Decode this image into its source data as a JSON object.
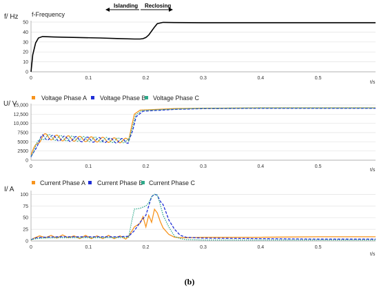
{
  "caption": "(b)",
  "chart_data": [
    {
      "type": "line",
      "ylabel": "f/ Hz",
      "xlabel": "t/s",
      "xlim": [
        0,
        0.6
      ],
      "ylim": [
        0,
        50
      ],
      "x_ticks": [
        "0",
        "0.1",
        "0.2",
        "0.3",
        "0.4",
        "0.5"
      ],
      "y_ticks": [
        "0",
        "10",
        "20",
        "30",
        "40",
        "50"
      ],
      "grid": "horizontal",
      "annotations": [
        {
          "text": "Islanding",
          "direction": "left",
          "from_x": 0.185,
          "to_x": 0.12
        },
        {
          "text": "Reclosing",
          "direction": "right",
          "from_x": 0.19,
          "to_x": 0.235
        }
      ],
      "series": [
        {
          "name": "f-Frequency",
          "color": "#000000",
          "x": [
            0,
            0.003,
            0.008,
            0.013,
            0.02,
            0.04,
            0.08,
            0.12,
            0.15,
            0.18,
            0.19,
            0.195,
            0.2,
            0.205,
            0.21,
            0.215,
            0.22,
            0.23,
            0.25,
            0.3,
            0.4,
            0.5,
            0.6
          ],
          "y": [
            0,
            17,
            29,
            34,
            35.5,
            35,
            34.5,
            34,
            33.5,
            33,
            33,
            33.3,
            34.5,
            37,
            41,
            45,
            48.5,
            49.7,
            49.5,
            49.4,
            49.4,
            49.4,
            49.4
          ]
        }
      ]
    },
    {
      "type": "line",
      "ylabel": "U/ V",
      "xlabel": "t/s",
      "xlim": [
        0,
        0.6
      ],
      "ylim": [
        0,
        15000
      ],
      "x_ticks": [
        "0",
        "0.1",
        "0.2",
        "0.3",
        "0.4",
        "0.5"
      ],
      "y_ticks": [
        "0",
        "2500",
        "5000",
        "7500",
        "10,000",
        "12,500",
        "15,000"
      ],
      "grid": "horizontal",
      "legend": "top",
      "series": [
        {
          "name": "Voltage Phase A",
          "color": "#f7941d",
          "envelope": {
            "x": [
              0,
              0.01,
              0.02,
              0.05,
              0.1,
              0.15,
              0.17
            ],
            "y": [
              1500,
              4500,
              6500,
              6000,
              5700,
              5400,
              5300
            ]
          },
          "step": {
            "x": [
              0.17,
              0.175,
              0.18,
              0.19,
              0.25,
              0.3,
              0.4,
              0.5,
              0.6
            ],
            "y": [
              5300,
              9000,
              12500,
              13600,
              14000,
              14100,
              14200,
              14200,
              14200
            ]
          }
        },
        {
          "name": "Voltage Phase B",
          "color": "#1f2fd6",
          "envelope": {
            "x": [
              0,
              0.01,
              0.02,
              0.05,
              0.1,
              0.15,
              0.17
            ],
            "y": [
              800,
              4000,
              6300,
              5900,
              5600,
              5300,
              5200
            ]
          },
          "step": {
            "x": [
              0.17,
              0.177,
              0.183,
              0.195,
              0.25,
              0.3,
              0.4,
              0.5,
              0.6
            ],
            "y": [
              5200,
              8000,
              11800,
              13300,
              13800,
              14000,
              14100,
              14100,
              14100
            ]
          }
        },
        {
          "name": "Voltage Phase C",
          "color": "#2ea98a",
          "envelope": {
            "x": [
              0,
              0.01,
              0.02,
              0.05,
              0.1,
              0.15,
              0.17
            ],
            "y": [
              1200,
              4200,
              6400,
              6000,
              5700,
              5400,
              5300
            ]
          },
          "step": {
            "x": [
              0.17,
              0.176,
              0.182,
              0.193,
              0.25,
              0.3,
              0.4,
              0.5,
              0.6
            ],
            "y": [
              5300,
              8500,
              12200,
              13500,
              13900,
              14100,
              14200,
              14200,
              14200
            ]
          }
        }
      ]
    },
    {
      "type": "line",
      "ylabel": "I/ A",
      "xlabel": "t/s",
      "xlim": [
        0,
        0.6
      ],
      "ylim": [
        0,
        105
      ],
      "x_ticks": [
        "0",
        "0.1",
        "0.2",
        "0.3",
        "0.4",
        "0.5"
      ],
      "y_ticks": [
        "0",
        "25",
        "50",
        "75",
        "100"
      ],
      "grid": "horizontal",
      "legend": "top",
      "series": [
        {
          "name": "Current Phase A",
          "color": "#f7941d",
          "x": [
            0,
            0.005,
            0.015,
            0.025,
            0.035,
            0.045,
            0.055,
            0.065,
            0.075,
            0.085,
            0.095,
            0.105,
            0.115,
            0.125,
            0.135,
            0.145,
            0.155,
            0.165,
            0.17,
            0.18,
            0.19,
            0.195,
            0.2,
            0.205,
            0.21,
            0.215,
            0.22,
            0.225,
            0.23,
            0.24,
            0.25,
            0.26,
            0.27,
            0.3,
            0.4,
            0.5,
            0.6
          ],
          "y": [
            2,
            6,
            11,
            7,
            12,
            6,
            13,
            7,
            11,
            5,
            12,
            5,
            11,
            5,
            12,
            5,
            11,
            4,
            10,
            30,
            38,
            52,
            30,
            55,
            40,
            68,
            60,
            42,
            28,
            14,
            8,
            7,
            7,
            8,
            8,
            9,
            9
          ]
        },
        {
          "name": "Current Phase B",
          "color": "#1f2fd6",
          "x": [
            0,
            0.01,
            0.02,
            0.05,
            0.1,
            0.15,
            0.17,
            0.18,
            0.19,
            0.2,
            0.205,
            0.21,
            0.215,
            0.22,
            0.225,
            0.23,
            0.235,
            0.24,
            0.25,
            0.26,
            0.27,
            0.3,
            0.4,
            0.5,
            0.6
          ],
          "y": [
            3,
            7,
            8,
            9,
            9,
            9,
            10,
            22,
            40,
            55,
            75,
            95,
            100,
            98,
            85,
            78,
            62,
            45,
            25,
            12,
            8,
            6,
            5,
            4,
            4
          ]
        },
        {
          "name": "Current Phase C",
          "color": "#2ea98a",
          "x": [
            0,
            0.01,
            0.02,
            0.05,
            0.1,
            0.15,
            0.17,
            0.175,
            0.18,
            0.19,
            0.2,
            0.205,
            0.21,
            0.215,
            0.22,
            0.225,
            0.23,
            0.24,
            0.25,
            0.26,
            0.27,
            0.3,
            0.4,
            0.5,
            0.6
          ],
          "y": [
            3,
            5,
            6,
            7,
            7,
            7,
            8,
            40,
            68,
            70,
            75,
            82,
            95,
            100,
            98,
            78,
            55,
            30,
            10,
            5,
            3,
            2,
            2,
            2,
            2
          ]
        }
      ]
    }
  ]
}
